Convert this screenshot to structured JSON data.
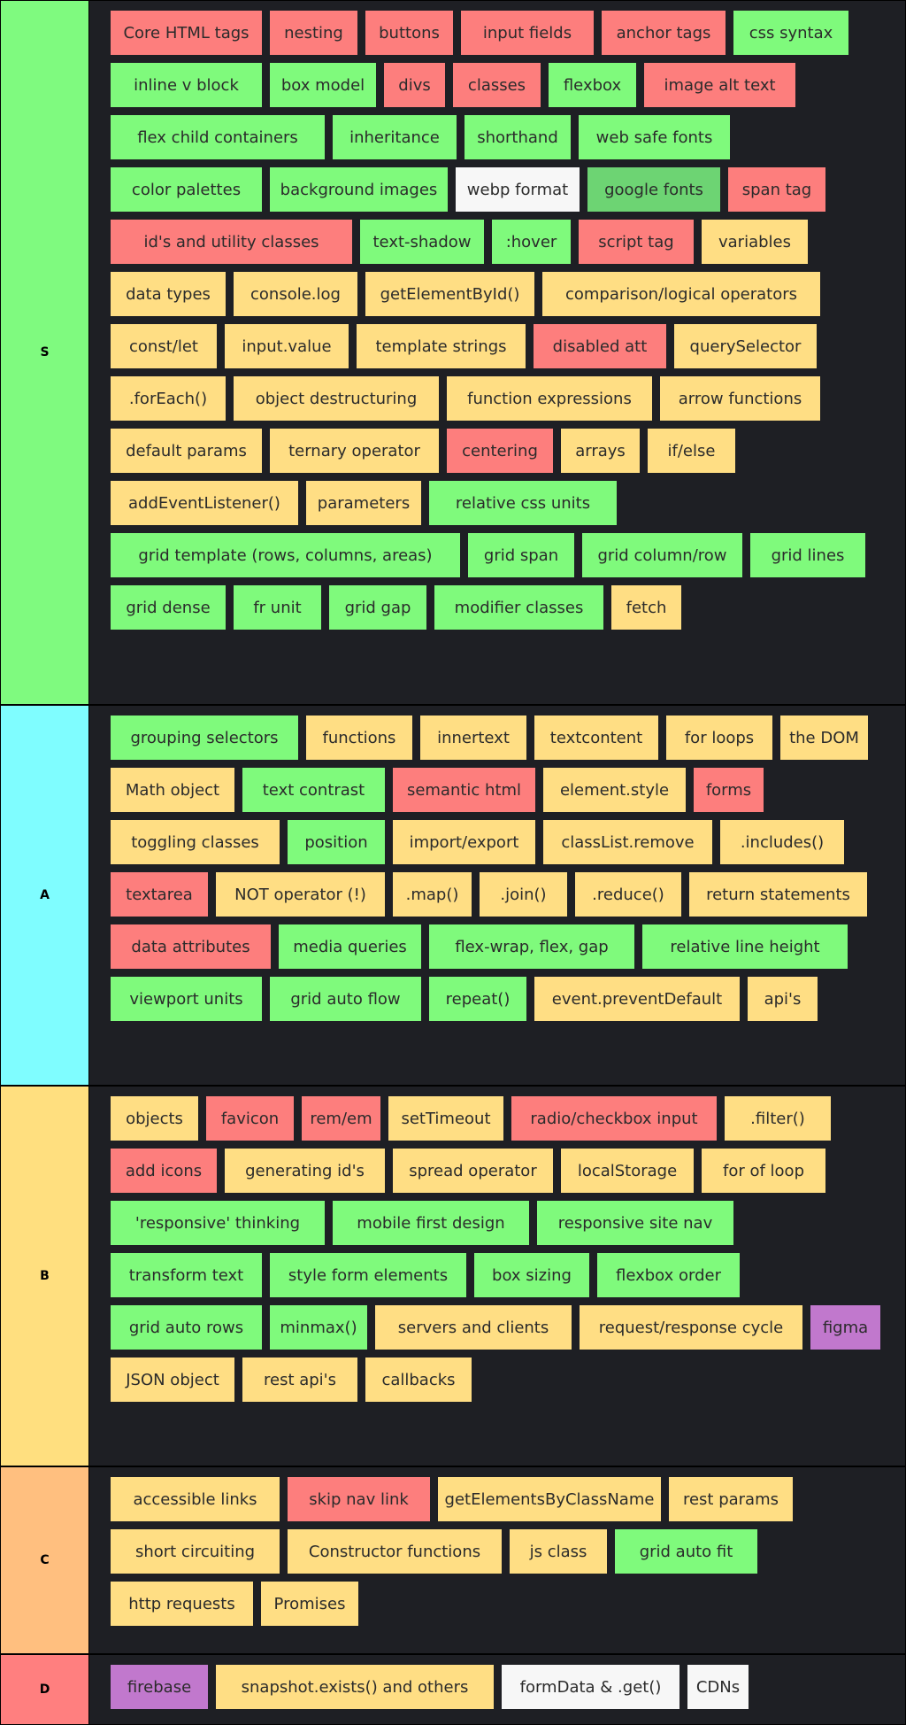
{
  "palette": {
    "green": "#7ffa7c",
    "red": "#fd7e7d",
    "yellow": "#ffde84",
    "white": "#f7f7f7",
    "darkgreen": "#6dd473",
    "purple": "#c178cd"
  },
  "tiers": [
    {
      "label": "S",
      "color": "#7ffa7f",
      "items": [
        {
          "text": "Core HTML tags",
          "color": "red"
        },
        {
          "text": "nesting",
          "color": "red"
        },
        {
          "text": "buttons",
          "color": "red"
        },
        {
          "text": "input fields",
          "color": "red"
        },
        {
          "text": "anchor tags",
          "color": "red"
        },
        {
          "text": "css syntax",
          "color": "green"
        },
        {
          "text": "inline v block",
          "color": "green"
        },
        {
          "text": "box model",
          "color": "green"
        },
        {
          "text": "divs",
          "color": "red"
        },
        {
          "text": "classes",
          "color": "red"
        },
        {
          "text": "flexbox",
          "color": "green"
        },
        {
          "text": "image alt text",
          "color": "red"
        },
        {
          "text": "flex child containers",
          "color": "green"
        },
        {
          "text": "inheritance",
          "color": "green"
        },
        {
          "text": "shorthand",
          "color": "green"
        },
        {
          "text": "web safe fonts",
          "color": "green"
        },
        {
          "text": "color palettes",
          "color": "green"
        },
        {
          "text": "background images",
          "color": "green"
        },
        {
          "text": "webp format",
          "color": "white"
        },
        {
          "text": "google fonts",
          "color": "darkgreen"
        },
        {
          "text": "span tag",
          "color": "red"
        },
        {
          "text": "id's and utility classes",
          "color": "red"
        },
        {
          "text": "text-shadow",
          "color": "green"
        },
        {
          "text": ":hover",
          "color": "green"
        },
        {
          "text": "script tag",
          "color": "red"
        },
        {
          "text": "variables",
          "color": "yellow"
        },
        {
          "text": "data types",
          "color": "yellow"
        },
        {
          "text": "console.log",
          "color": "yellow"
        },
        {
          "text": "getElementById()",
          "color": "yellow"
        },
        {
          "text": "comparison/logical operators",
          "color": "yellow"
        },
        {
          "text": "const/let",
          "color": "yellow"
        },
        {
          "text": "input.value",
          "color": "yellow"
        },
        {
          "text": "template strings",
          "color": "yellow"
        },
        {
          "text": "disabled att",
          "color": "red"
        },
        {
          "text": "querySelector",
          "color": "yellow"
        },
        {
          "text": ".forEach()",
          "color": "yellow"
        },
        {
          "text": "object destructuring",
          "color": "yellow"
        },
        {
          "text": "function expressions",
          "color": "yellow"
        },
        {
          "text": "arrow functions",
          "color": "yellow"
        },
        {
          "text": "default params",
          "color": "yellow"
        },
        {
          "text": "ternary operator",
          "color": "yellow"
        },
        {
          "text": "centering",
          "color": "red"
        },
        {
          "text": "arrays",
          "color": "yellow"
        },
        {
          "text": "if/else",
          "color": "yellow"
        },
        {
          "text": "addEventListener()",
          "color": "yellow"
        },
        {
          "text": "parameters",
          "color": "yellow"
        },
        {
          "text": "relative css units",
          "color": "green"
        },
        {
          "text": "grid template (rows, columns, areas)",
          "color": "green"
        },
        {
          "text": "grid span",
          "color": "green"
        },
        {
          "text": "grid column/row",
          "color": "green"
        },
        {
          "text": "grid lines",
          "color": "green"
        },
        {
          "text": "grid dense",
          "color": "green"
        },
        {
          "text": "fr unit",
          "color": "green"
        },
        {
          "text": "grid gap",
          "color": "green"
        },
        {
          "text": "modifier classes",
          "color": "green"
        },
        {
          "text": "fetch",
          "color": "yellow"
        }
      ]
    },
    {
      "label": "A",
      "color": "#7ffdff",
      "items": [
        {
          "text": "grouping selectors",
          "color": "green"
        },
        {
          "text": "functions",
          "color": "yellow"
        },
        {
          "text": "innertext",
          "color": "yellow"
        },
        {
          "text": "textcontent",
          "color": "yellow"
        },
        {
          "text": "for loops",
          "color": "yellow"
        },
        {
          "text": "the DOM",
          "color": "yellow"
        },
        {
          "text": "Math object",
          "color": "yellow"
        },
        {
          "text": "text contrast",
          "color": "green"
        },
        {
          "text": "semantic html",
          "color": "red"
        },
        {
          "text": "element.style",
          "color": "yellow"
        },
        {
          "text": "forms",
          "color": "red"
        },
        {
          "text": "toggling classes",
          "color": "yellow"
        },
        {
          "text": "position",
          "color": "green"
        },
        {
          "text": "import/export",
          "color": "yellow"
        },
        {
          "text": "classList.remove",
          "color": "yellow"
        },
        {
          "text": ".includes()",
          "color": "yellow"
        },
        {
          "text": "textarea",
          "color": "red"
        },
        {
          "text": "NOT operator (!)",
          "color": "yellow"
        },
        {
          "text": ".map()",
          "color": "yellow"
        },
        {
          "text": ".join()",
          "color": "yellow"
        },
        {
          "text": ".reduce()",
          "color": "yellow"
        },
        {
          "text": "return statements",
          "color": "yellow"
        },
        {
          "text": "data attributes",
          "color": "red"
        },
        {
          "text": "media queries",
          "color": "green"
        },
        {
          "text": "flex-wrap, flex, gap",
          "color": "green"
        },
        {
          "text": "relative line height",
          "color": "green"
        },
        {
          "text": "viewport units",
          "color": "green"
        },
        {
          "text": "grid auto flow",
          "color": "green"
        },
        {
          "text": "repeat()",
          "color": "green"
        },
        {
          "text": "event.preventDefault",
          "color": "yellow"
        },
        {
          "text": "api's",
          "color": "yellow"
        }
      ]
    },
    {
      "label": "B",
      "color": "#ffdf7f",
      "items": [
        {
          "text": "objects",
          "color": "yellow"
        },
        {
          "text": "favicon",
          "color": "red"
        },
        {
          "text": "rem/em",
          "color": "red"
        },
        {
          "text": "setTimeout",
          "color": "yellow"
        },
        {
          "text": "radio/checkbox input",
          "color": "red"
        },
        {
          "text": ".filter()",
          "color": "yellow"
        },
        {
          "text": "add icons",
          "color": "red"
        },
        {
          "text": "generating id's",
          "color": "yellow"
        },
        {
          "text": "spread operator",
          "color": "yellow"
        },
        {
          "text": "localStorage",
          "color": "yellow"
        },
        {
          "text": "for of loop",
          "color": "yellow"
        },
        {
          "text": "'responsive' thinking",
          "color": "green"
        },
        {
          "text": "mobile first design",
          "color": "green"
        },
        {
          "text": "responsive site nav",
          "color": "green"
        },
        {
          "text": "transform text",
          "color": "green"
        },
        {
          "text": "style form elements",
          "color": "green"
        },
        {
          "text": "box sizing",
          "color": "green"
        },
        {
          "text": "flexbox order",
          "color": "green"
        },
        {
          "text": "grid auto rows",
          "color": "green"
        },
        {
          "text": "minmax()",
          "color": "green"
        },
        {
          "text": "servers and clients",
          "color": "yellow"
        },
        {
          "text": "request/response cycle",
          "color": "yellow"
        },
        {
          "text": "figma",
          "color": "purple"
        },
        {
          "text": "JSON object",
          "color": "yellow"
        },
        {
          "text": "rest api's",
          "color": "yellow"
        },
        {
          "text": "callbacks",
          "color": "yellow"
        }
      ]
    },
    {
      "label": "C",
      "color": "#ffbf7f",
      "items": [
        {
          "text": "accessible links",
          "color": "yellow"
        },
        {
          "text": "skip nav link",
          "color": "red"
        },
        {
          "text": "getElementsByClassName",
          "color": "yellow"
        },
        {
          "text": "rest params",
          "color": "yellow"
        },
        {
          "text": "short circuiting",
          "color": "yellow"
        },
        {
          "text": "Constructor functions",
          "color": "yellow"
        },
        {
          "text": "js class",
          "color": "yellow"
        },
        {
          "text": "grid auto fit",
          "color": "green"
        },
        {
          "text": "http requests",
          "color": "yellow"
        },
        {
          "text": "Promises",
          "color": "yellow"
        }
      ]
    },
    {
      "label": "D",
      "color": "#ff7f7f",
      "items": [
        {
          "text": "firebase",
          "color": "purple"
        },
        {
          "text": "snapshot.exists() and others",
          "color": "yellow"
        },
        {
          "text": "formData & .get()",
          "color": "white"
        },
        {
          "text": "CDNs",
          "color": "white"
        }
      ]
    }
  ]
}
